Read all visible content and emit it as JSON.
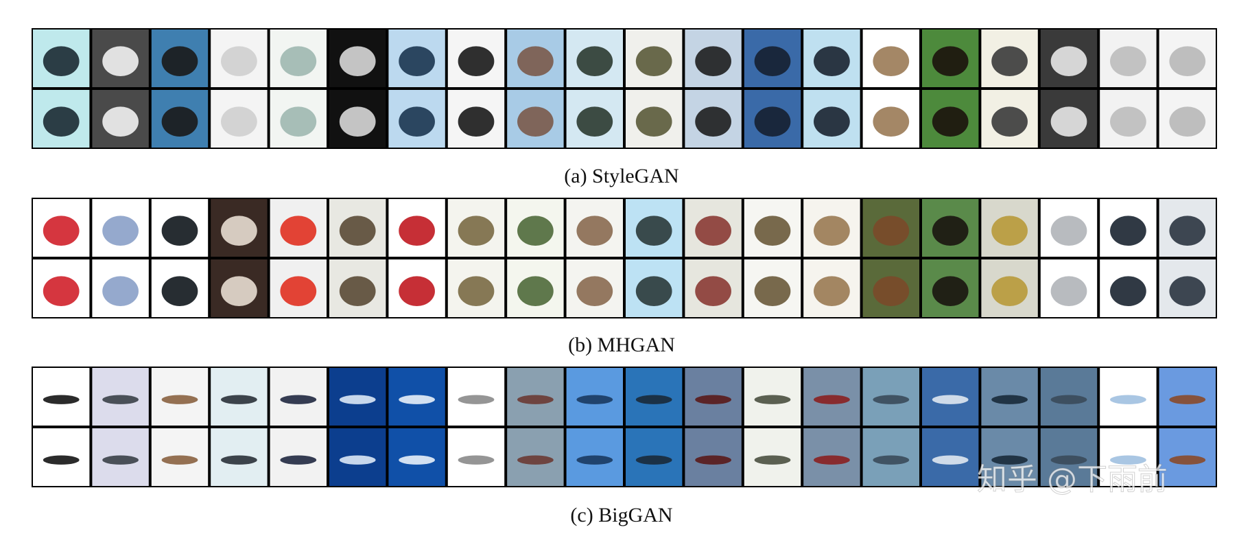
{
  "panels": [
    {
      "caption": "(a) StyleGAN"
    },
    {
      "caption": "(b) MHGAN"
    },
    {
      "caption": "(c) BigGAN"
    }
  ],
  "watermark": "知乎 @下雨前"
}
